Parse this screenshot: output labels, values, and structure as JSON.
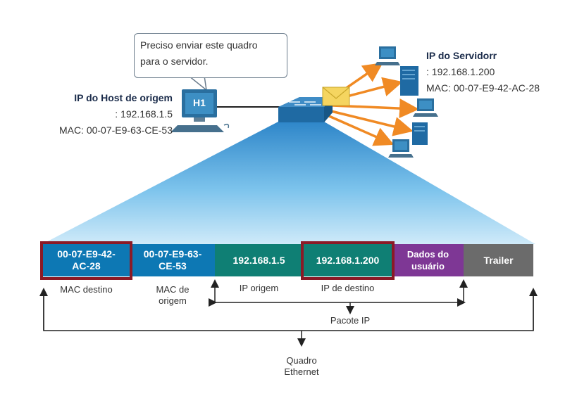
{
  "speech_bubble": {
    "line1": "Preciso enviar este quadro",
    "line2": "para o servidor."
  },
  "host": {
    "icon_label": "H1",
    "title": "IP do Host de origem",
    "ip": ": 192.168.1.5",
    "mac": "MAC: 00-07-E9-63-CE-53"
  },
  "server": {
    "title": "IP do Servidorr",
    "ip": ": 192.168.1.200",
    "mac": "MAC: 00-07-E9-42-AC-28"
  },
  "frame": {
    "mac_dest": {
      "line1": "00-07-E9-42-",
      "line2": "AC-28",
      "label": "MAC destino"
    },
    "mac_src": {
      "line1": "00-07-E9-63-",
      "line2": "CE-53",
      "label_line1": "MAC de",
      "label_line2": "origem"
    },
    "ip_src": {
      "value": "192.168.1.5",
      "label": "IP origem"
    },
    "ip_dst": {
      "value": "192.168.1.200",
      "label": "IP de destino"
    },
    "data": {
      "line1": "Dados do",
      "line2": "usuário"
    },
    "trailer": {
      "value": "Trailer"
    }
  },
  "brackets": {
    "packet": "Pacote IP",
    "frame_line1": "Quadro",
    "frame_line2": "Ethernet"
  },
  "colors": {
    "mac_field": "#0d78b4",
    "ip_field": "#0f7f74",
    "data_field": "#7e3795",
    "trailer_field": "#6b6b6b",
    "highlight": "#8b1a26",
    "broadcast_arrow": "#f08a24"
  }
}
